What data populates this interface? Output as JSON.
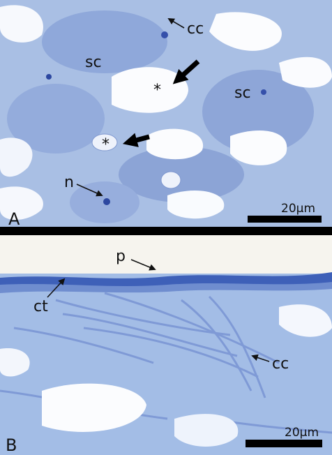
{
  "panels": [
    {
      "label": "A",
      "scale_bar": "20µm",
      "annotations": [
        {
          "text": "cc"
        },
        {
          "text": "sc"
        },
        {
          "text": "*"
        },
        {
          "text": "sc"
        },
        {
          "text": "*"
        },
        {
          "text": "n"
        }
      ]
    },
    {
      "label": "B",
      "scale_bar": "20µm",
      "annotations": [
        {
          "text": "p"
        },
        {
          "text": "ct"
        },
        {
          "text": "cc"
        }
      ]
    }
  ]
}
